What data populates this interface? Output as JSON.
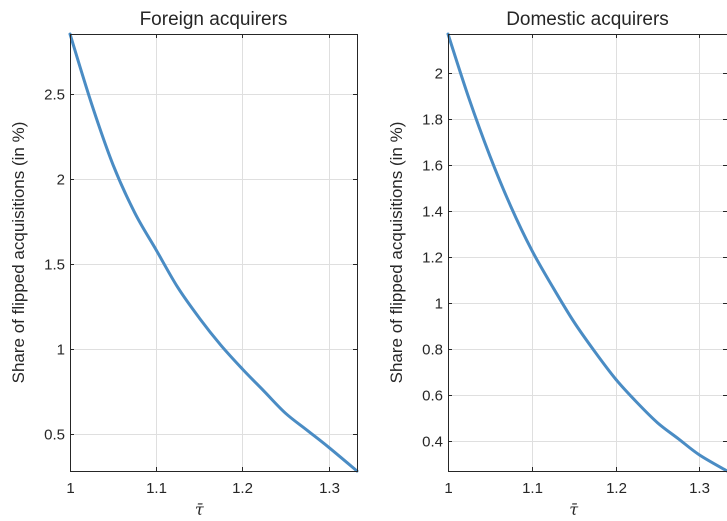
{
  "chart_data": [
    {
      "type": "line",
      "title": "Foreign acquirers",
      "xlabel": "τ̄",
      "ylabel": "Share of flipped acquisitions (in %)",
      "xlim": [
        1,
        1.333
      ],
      "ylim": [
        0.28,
        2.85
      ],
      "x_ticks": [
        1,
        1.1,
        1.2,
        1.3
      ],
      "x_tick_labels": [
        "1",
        "1.1",
        "1.2",
        "1.3"
      ],
      "y_ticks": [
        0.5,
        1,
        1.5,
        2,
        2.5
      ],
      "y_tick_labels": [
        "0.5",
        "1",
        "1.5",
        "2",
        "2.5"
      ],
      "grid": true,
      "series": [
        {
          "color": "#4a8cc4",
          "x": [
            1.0,
            1.025,
            1.05,
            1.075,
            1.1,
            1.125,
            1.15,
            1.175,
            1.2,
            1.225,
            1.25,
            1.275,
            1.3,
            1.333
          ],
          "y": [
            2.85,
            2.44,
            2.08,
            1.8,
            1.58,
            1.36,
            1.18,
            1.02,
            0.88,
            0.75,
            0.62,
            0.52,
            0.42,
            0.28
          ]
        }
      ]
    },
    {
      "type": "line",
      "title": "Domestic acquirers",
      "xlabel": "τ̄",
      "ylabel": "Share of flipped acquisitions (in %)",
      "xlim": [
        1,
        1.333
      ],
      "ylim": [
        0.27,
        2.17
      ],
      "x_ticks": [
        1,
        1.1,
        1.2,
        1.3
      ],
      "x_tick_labels": [
        "1",
        "1.1",
        "1.2",
        "1.3"
      ],
      "y_ticks": [
        0.4,
        0.6,
        0.8,
        1,
        1.2,
        1.4,
        1.6,
        1.8,
        2
      ],
      "y_tick_labels": [
        "0.4",
        "0.6",
        "0.8",
        "1",
        "1.2",
        "1.4",
        "1.6",
        "1.8",
        "2"
      ],
      "grid": true,
      "series": [
        {
          "color": "#4a8cc4",
          "x": [
            1.0,
            1.025,
            1.05,
            1.075,
            1.1,
            1.125,
            1.15,
            1.175,
            1.2,
            1.225,
            1.25,
            1.275,
            1.3,
            1.333
          ],
          "y": [
            2.17,
            1.89,
            1.64,
            1.42,
            1.23,
            1.07,
            0.92,
            0.79,
            0.67,
            0.57,
            0.48,
            0.41,
            0.34,
            0.27
          ]
        }
      ]
    }
  ]
}
